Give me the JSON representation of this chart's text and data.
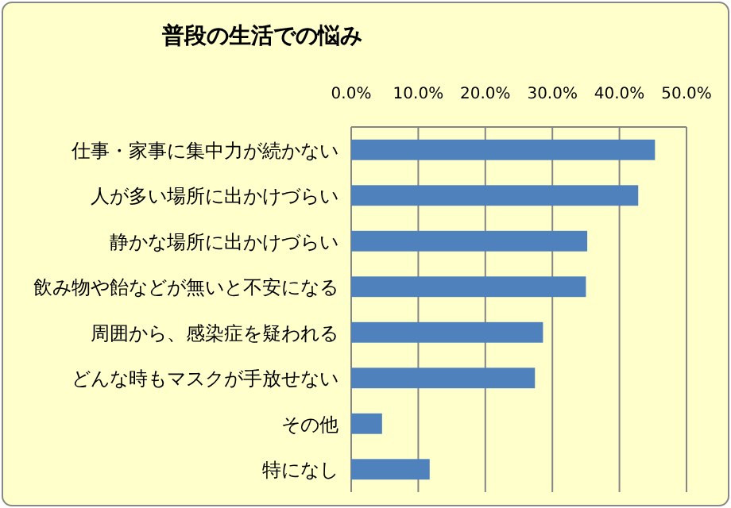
{
  "chart_data": {
    "type": "bar",
    "orientation": "horizontal",
    "title": "普段の生活での悩み",
    "categories": [
      "仕事・家事に集中力が続かない",
      "人が多い場所に出かけづらい",
      "静かな場所に出かけづらい",
      "飲み物や飴などが無いと不安になる",
      "周囲から、感染症を疑われる",
      "どんな時もマスクが手放せない",
      "その他",
      "特になし"
    ],
    "values": [
      45.3,
      42.8,
      35.2,
      35.0,
      28.6,
      27.4,
      4.6,
      11.7
    ],
    "color": "#4f81bd",
    "xlim": [
      0,
      50
    ],
    "xticks": [
      {
        "value": 0,
        "label": "0.0%"
      },
      {
        "value": 10,
        "label": "10.0%"
      },
      {
        "value": 20,
        "label": "20.0%"
      },
      {
        "value": 30,
        "label": "30.0%"
      },
      {
        "value": 40,
        "label": "40.0%"
      },
      {
        "value": 50,
        "label": "50.0%"
      }
    ],
    "grid": "x"
  }
}
